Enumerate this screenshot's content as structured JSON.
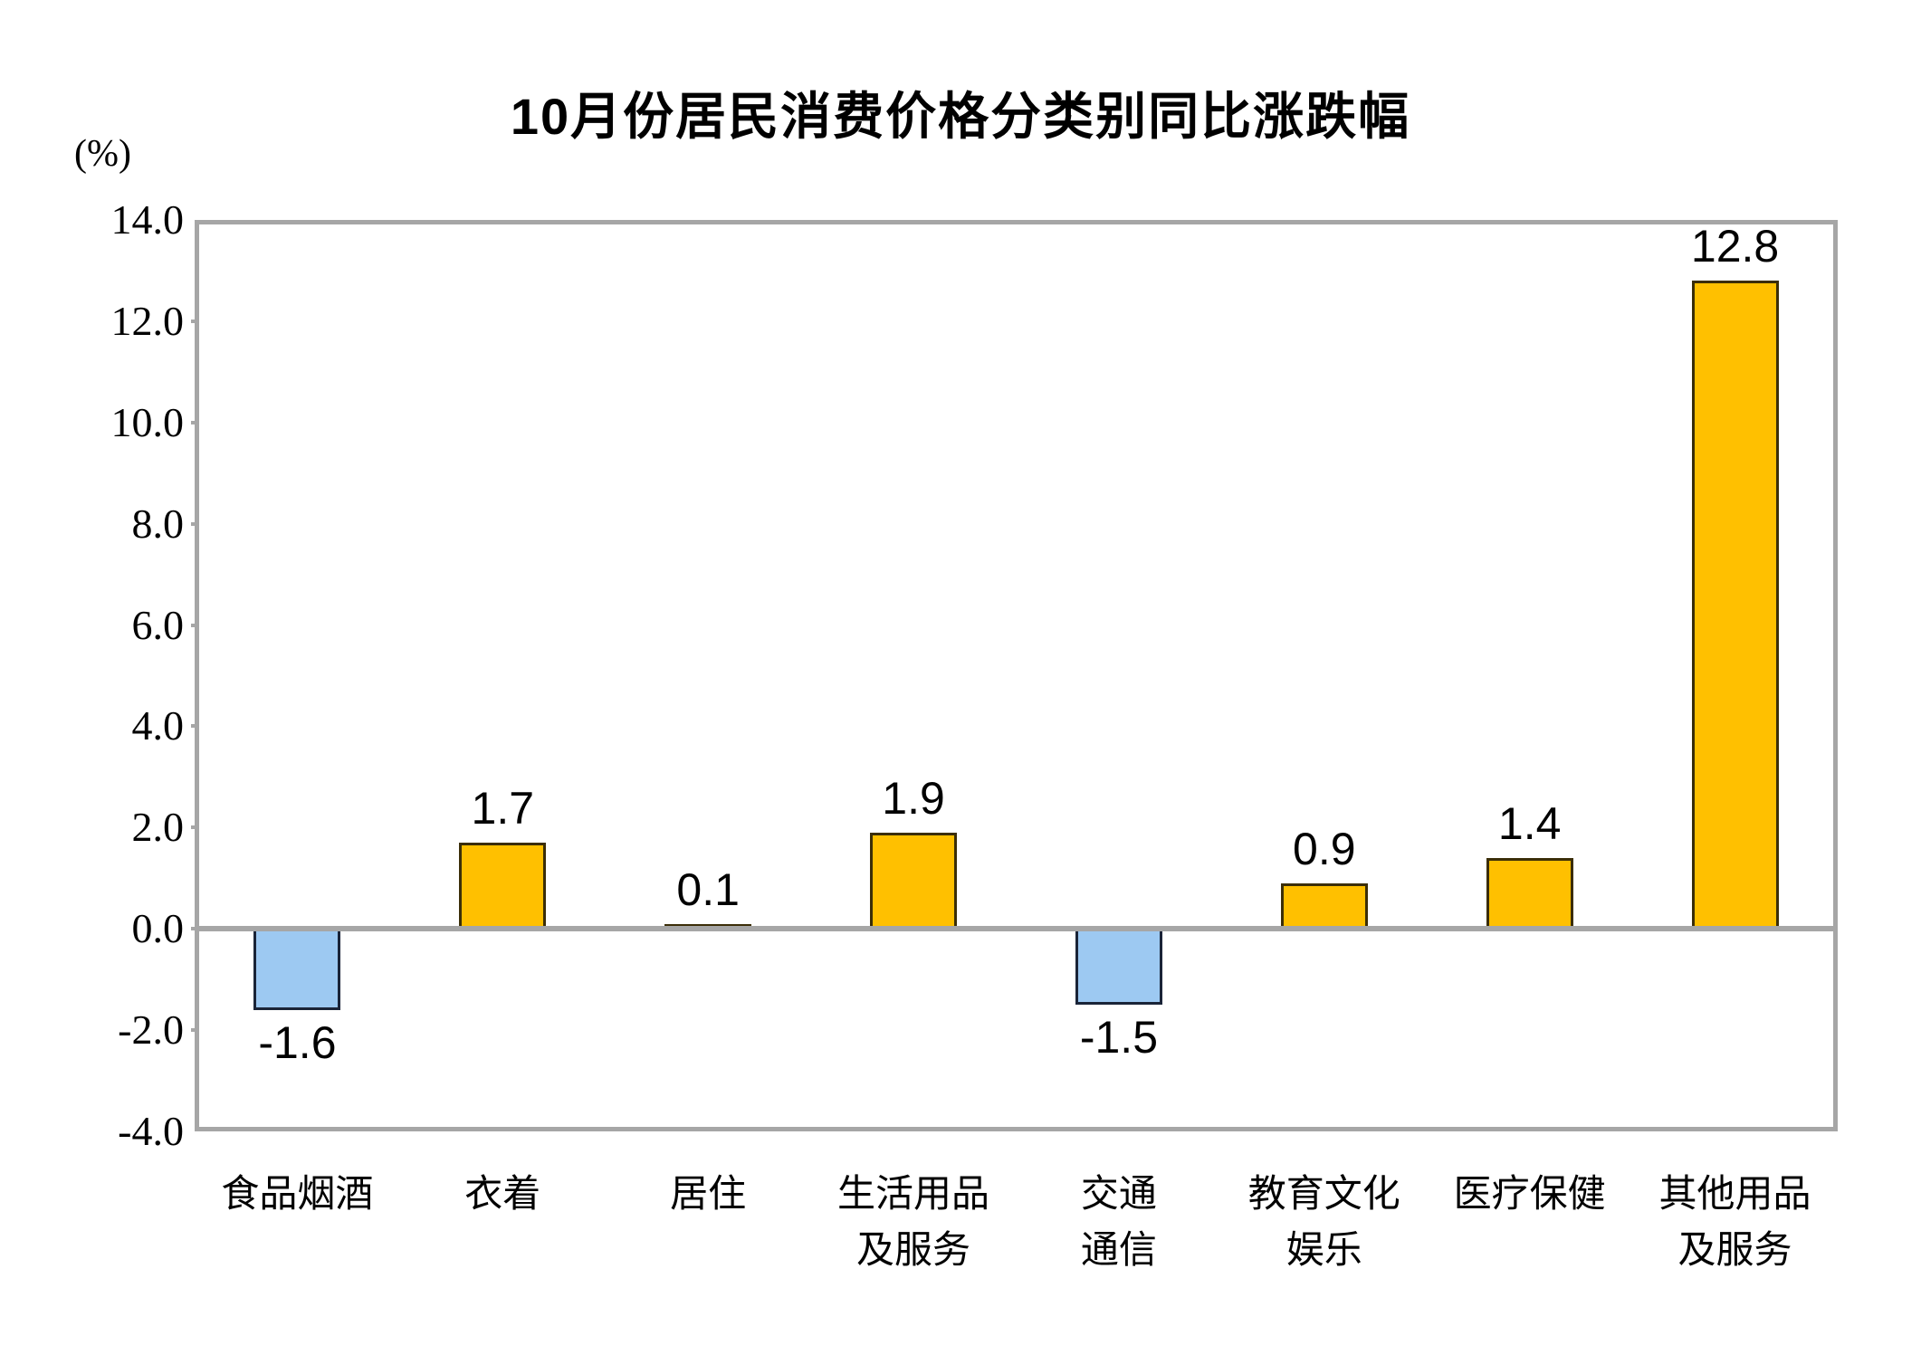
{
  "title": "10月份居民消费价格分类别同比涨跌幅",
  "unit_label": "(%)",
  "colors": {
    "positive_fill": "#FFC000",
    "positive_border": "#3B2E08",
    "negative_fill": "#9DC9F2",
    "negative_border": "#1A2438",
    "axis_gray": "#A6A6A6",
    "text": "#000000"
  },
  "chart_data": {
    "type": "bar",
    "title": "10月份居民消费价格分类别同比涨跌幅",
    "xlabel": "",
    "ylabel": "(%)",
    "categories": [
      "食品烟酒",
      "衣着",
      "居住",
      "生活用品及服务",
      "交通通信",
      "教育文化娱乐",
      "医疗保健",
      "其他用品及服务"
    ],
    "category_lines": [
      [
        "食品烟酒"
      ],
      [
        "衣着"
      ],
      [
        "居住"
      ],
      [
        "生活用品",
        "及服务"
      ],
      [
        "交通",
        "通信"
      ],
      [
        "教育文化",
        "娱乐"
      ],
      [
        "医疗保健"
      ],
      [
        "其他用品",
        "及服务"
      ]
    ],
    "values": [
      -1.6,
      1.7,
      0.1,
      1.9,
      -1.5,
      0.9,
      1.4,
      12.8
    ],
    "value_labels": [
      "-1.6",
      "1.7",
      "0.1",
      "1.9",
      "-1.5",
      "0.9",
      "1.4",
      "12.8"
    ],
    "ylim": [
      -4.0,
      14.0
    ],
    "ytick_step": 2.0,
    "ytick_labels": [
      "14.0",
      "12.0",
      "10.0",
      "8.0",
      "6.0",
      "4.0",
      "2.0",
      "0.0",
      "-2.0",
      "-4.0"
    ],
    "grid": false,
    "legend": false
  }
}
